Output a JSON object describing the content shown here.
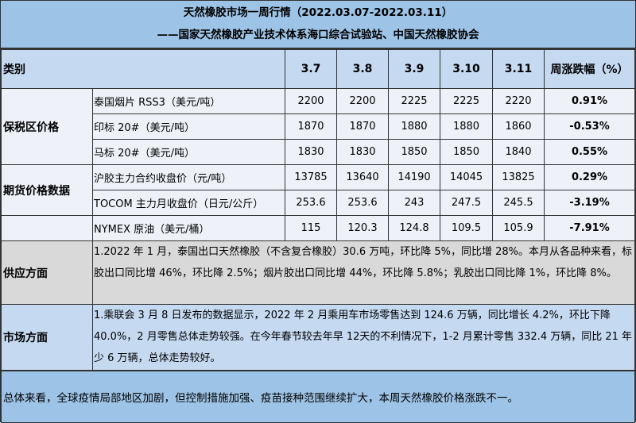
{
  "title": {
    "line1": "天然橡胶市场一周行情（2022.03.07-2022.03.11）",
    "line2": "——国家天然橡胶产业技术体系海口综合试验站、中国天然橡胶协会"
  },
  "header": {
    "category": "类别",
    "dates": [
      "3.7",
      "3.8",
      "3.9",
      "3.10",
      "3.11"
    ],
    "change": "周涨跌幅（%）"
  },
  "groups": {
    "bonded": "保税区价格",
    "futures": "期货价格数据"
  },
  "rows": [
    {
      "item": "泰国烟片 RSS3（美元/吨）",
      "values": [
        "2200",
        "2200",
        "2225",
        "2225",
        "2220"
      ],
      "change": "0.91%"
    },
    {
      "item": "印标 20#（美元/吨）",
      "values": [
        "1870",
        "1870",
        "1880",
        "1880",
        "1860"
      ],
      "change": "-0.53%"
    },
    {
      "item": "马标 20#（美元/吨）",
      "values": [
        "1830",
        "1830",
        "1850",
        "1850",
        "1840"
      ],
      "change": "0.55%"
    },
    {
      "item": "沪胶主力合约收盘价（元/吨）",
      "values": [
        "13785",
        "13640",
        "14190",
        "14045",
        "13825"
      ],
      "change": "0.29%"
    },
    {
      "item": "TOCOM 主力月收盘价（日元/公斤）",
      "values": [
        "253.6",
        "253.6",
        "243",
        "247.5",
        "245.5"
      ],
      "change": "-3.19%"
    },
    {
      "item": "NYMEX 原油（美元/桶）",
      "values": [
        "115",
        "120.3",
        "124.8",
        "109.5",
        "105.9"
      ],
      "change": "-7.91%"
    }
  ],
  "supply": {
    "label": "供应方面",
    "text": "1.2022 年 1 月，泰国出口天然橡胶（不含复合橡胶）30.6 万吨，环比降 5%，同比增 28%。本月从各品种来看，标胶出口同比增 46%，环比降 2.5%；烟片胶出口同比增 44%，环比降 5.8%；乳胶出口同比降 1%，环比降 8%。"
  },
  "market": {
    "label": "市场方面",
    "text": "1.乘联会 3 月 8 日发布的数据显示，2022 年 2 月乘用车市场零售达到 124.6 万辆，同比增长 4.2%，环比下降 40.0%，2 月零售总体走势较强。在今年春节较去年早 12天的不利情况下，1-2 月累计零售 332.4 万辆，同比 21 年少 6 万辆，总体走势较好。"
  },
  "summary": "总体来看，全球疫情局部地区加剧，但控制措施加强、疫苗接种范围继续扩大，本周天然橡胶价格涨跌不一。",
  "colors": {
    "title_bg": "#9dc3e6",
    "header_bg": "#c5d9f1",
    "supply_bg": "#d9d9d9"
  }
}
